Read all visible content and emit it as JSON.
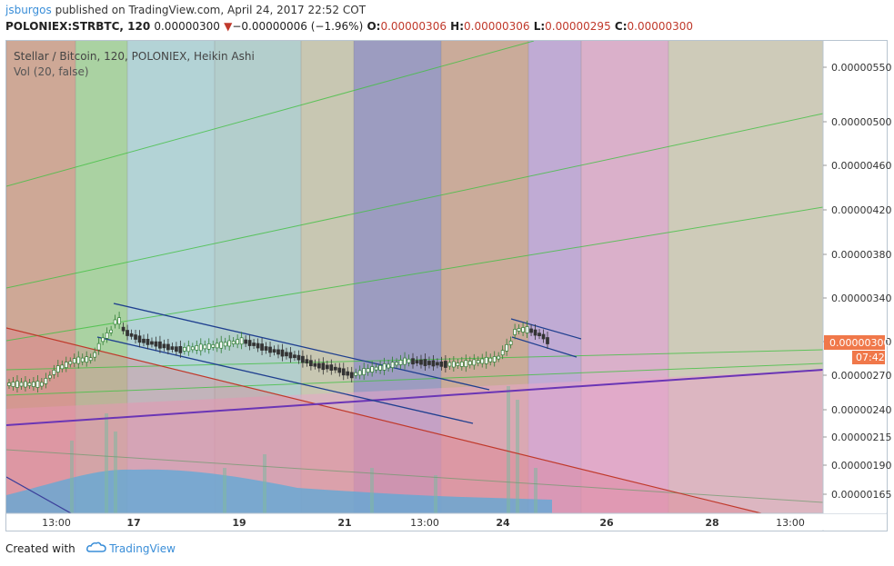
{
  "header": {
    "user": "jsburgos",
    "published_text": "published on TradingView.com, April 24, 2017 22:52 COT",
    "symbol": "POLONIEX:STRBTC, 120",
    "last": "0.00000300",
    "change_arrow": "▼",
    "change": "−0.00000006 (−1.96%)",
    "o_label": "O:",
    "o": "0.00000306",
    "h_label": "H:",
    "h": "0.00000306",
    "l_label": "L:",
    "l": "0.00000295",
    "c_label": "C:",
    "c": "0.00000300"
  },
  "legend": {
    "title": "Stellar / Bitcoin, 120, POLONIEX, Heikin Ashi",
    "vol": "Vol (20, false)"
  },
  "price_label": {
    "value": "0.00000300",
    "countdown": "07:42"
  },
  "footer": {
    "created_with": "Created with",
    "brand": "TradingView"
  },
  "colors": {
    "up": "#2e7d32",
    "down": "#333333",
    "channel": "#1f3f8f",
    "purple": "#6a35b5",
    "red_line": "#c0392b",
    "green_fan": "#43c043",
    "price_tag": "#f0784a"
  },
  "chart_data": {
    "type": "candlestick",
    "title": "Stellar / Bitcoin, 120, POLONIEX, Heikin Ashi",
    "y_ticks": [
      "0.00000550",
      "0.00000500",
      "0.00000460",
      "0.00000420",
      "0.00000380",
      "0.00000340",
      "0.00000300",
      "0.00000270",
      "0.00000240",
      "0.00000215",
      "0.00000190",
      "0.00000165"
    ],
    "x_ticks": [
      "13:00",
      "17",
      "19",
      "21",
      "13:00",
      "24",
      "26",
      "28",
      "13:00"
    ],
    "ylim": [
      1.5e-06,
      5.8e-06
    ],
    "series": [
      {
        "name": "STRBTC",
        "close": [
          2.7e-06,
          2.7e-06,
          2.7e-06,
          2.7e-06,
          2.7e-06,
          2.7e-06,
          2.7e-06,
          2.7e-06,
          2.7e-06,
          2.7e-06,
          2.7e-06,
          2.7e-06,
          2.7e-06,
          2.8e-06,
          2.8e-06,
          2.8e-06,
          2.9e-06,
          2.9e-06,
          2.9e-06,
          2.9e-06,
          2.9e-06,
          2.9e-06,
          2.9e-06,
          2.9e-06,
          2.9e-06,
          3e-06,
          3e-06,
          3.1e-06,
          3.2e-06,
          3.2e-06,
          3.2e-06,
          3.2e-06,
          3.2e-06,
          3.1e-06,
          3.1e-06,
          3.1e-06,
          3e-06,
          3e-06,
          3e-06,
          3e-06,
          3e-06,
          3e-06,
          3e-06,
          2.9e-06,
          2.9e-06,
          2.9e-06,
          2.9e-06,
          2.9e-06,
          2.9e-06,
          2.9e-06,
          2.9e-06,
          2.9e-06,
          2.9e-06,
          3e-06,
          3e-06,
          3e-06,
          3e-06,
          3e-06,
          3e-06,
          3e-06,
          3e-06,
          3e-06,
          2.9e-06,
          2.9e-06,
          2.9e-06,
          2.9e-06,
          2.9e-06,
          2.9e-06,
          2.9e-06,
          2.9e-06,
          2.9e-06,
          2.9e-06,
          2.9e-06,
          2.9e-06,
          2.9e-06,
          2.9e-06,
          2.9e-06,
          2.9e-06,
          2.9e-06,
          2.8e-06,
          2.8e-06,
          2.8e-06,
          2.8e-06,
          2.8e-06,
          2.8e-06,
          2.8e-06,
          2.8e-06,
          2.8e-06,
          2.8e-06,
          2.8e-06,
          2.8e-06,
          2.8e-06,
          2.8e-06,
          2.8e-06,
          2.8e-06,
          2.8e-06,
          2.8e-06,
          2.8e-06,
          2.9e-06,
          2.9e-06,
          2.9e-06,
          2.9e-06,
          2.9e-06,
          2.9e-06,
          2.9e-06,
          2.9e-06,
          2.9e-06,
          2.9e-06,
          2.9e-06,
          2.9e-06,
          2.9e-06,
          2.9e-06,
          2.9e-06,
          2.9e-06,
          2.9e-06,
          2.9e-06,
          2.9e-06,
          2.9e-06,
          2.9e-06,
          2.9e-06,
          2.9e-06,
          2.9e-06,
          2.9e-06,
          3e-06,
          3.1e-06,
          3.1e-06,
          3.1e-06,
          3.1e-06,
          3.1e-06,
          3.1e-06,
          3.1e-06,
          3.1e-06,
          3e-06
        ],
        "last": 3e-06
      }
    ]
  }
}
